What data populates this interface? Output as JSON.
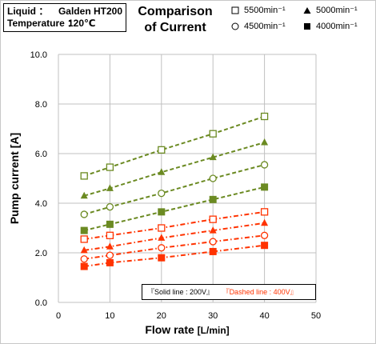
{
  "info": {
    "liquid_label": "Liquid ：",
    "liquid_value": "Galden HT200",
    "temperature_label": "Temperature ：",
    "temperature_value": "120℃"
  },
  "title_line1": "Comparison",
  "title_line2": "of Current",
  "legend": [
    {
      "label": "5500min⁻¹",
      "marker": "square-open"
    },
    {
      "label": "5000min⁻¹",
      "marker": "triangle-filled"
    },
    {
      "label": "4500min⁻¹",
      "marker": "circle-open"
    },
    {
      "label": "4000min⁻¹",
      "marker": "square-filled"
    }
  ],
  "note": {
    "solid": "『Solid line : 200V』",
    "dashed": "『Dashed line : 400V』"
  },
  "colors": {
    "solid_200v": "#6b8a22",
    "dashed_400v": "#ff3300",
    "grid": "#c0c0c0"
  },
  "chart_data": {
    "type": "line",
    "xlabel": "Flow rate",
    "xlabel_unit": "[L/min]",
    "ylabel": "Pump current [A]",
    "xlim": [
      0,
      50
    ],
    "ylim": [
      0,
      10
    ],
    "x_ticks": [
      0,
      10,
      20,
      30,
      40,
      50
    ],
    "y_ticks": [
      0.0,
      2.0,
      4.0,
      6.0,
      8.0,
      10.0
    ],
    "y_tick_labels": [
      "0.0",
      "2.0",
      "4.0",
      "6.0",
      "8.0",
      "10.0"
    ],
    "x_tick_labels": [
      "0",
      "10",
      "20",
      "30",
      "40",
      "50"
    ],
    "grid": true,
    "x": [
      5,
      10,
      20,
      30,
      40
    ],
    "series": [
      {
        "speed": "5500min⁻¹",
        "voltage": "200V",
        "marker": "square-open",
        "style": "solid",
        "values": [
          5.1,
          5.45,
          6.15,
          6.8,
          7.5
        ]
      },
      {
        "speed": "5000min⁻¹",
        "voltage": "200V",
        "marker": "triangle-filled",
        "style": "solid",
        "values": [
          4.3,
          4.6,
          5.25,
          5.85,
          6.45
        ]
      },
      {
        "speed": "4500min⁻¹",
        "voltage": "200V",
        "marker": "circle-open",
        "style": "solid",
        "values": [
          3.55,
          3.85,
          4.4,
          5.0,
          5.55
        ]
      },
      {
        "speed": "4000min⁻¹",
        "voltage": "200V",
        "marker": "square-filled",
        "style": "solid",
        "values": [
          2.9,
          3.15,
          3.65,
          4.15,
          4.65
        ]
      },
      {
        "speed": "5500min⁻¹",
        "voltage": "400V",
        "marker": "square-open",
        "style": "dashed",
        "values": [
          2.55,
          2.7,
          3.0,
          3.35,
          3.65
        ]
      },
      {
        "speed": "5000min⁻¹",
        "voltage": "400V",
        "marker": "triangle-filled",
        "style": "dashed",
        "values": [
          2.1,
          2.25,
          2.6,
          2.9,
          3.2
        ]
      },
      {
        "speed": "4500min⁻¹",
        "voltage": "400V",
        "marker": "circle-open",
        "style": "dashed",
        "values": [
          1.75,
          1.9,
          2.2,
          2.45,
          2.7
        ]
      },
      {
        "speed": "4000min⁻¹",
        "voltage": "400V",
        "marker": "square-filled",
        "style": "dashed",
        "values": [
          1.45,
          1.6,
          1.8,
          2.05,
          2.3
        ]
      }
    ]
  }
}
